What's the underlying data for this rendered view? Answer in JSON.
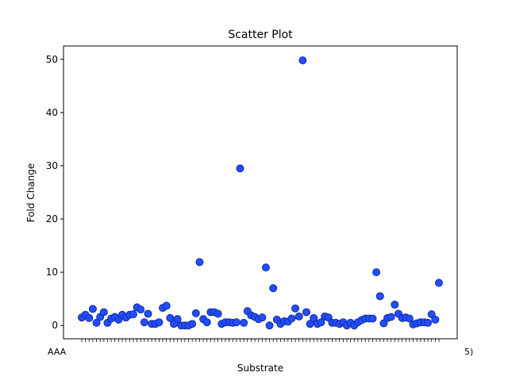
{
  "chart_data": {
    "type": "scatter",
    "title": "Scatter Plot",
    "xlabel": "Substrate",
    "ylabel": "Fold Change",
    "ylim": [
      -2.5,
      52.5
    ],
    "yticks": [
      0,
      10,
      20,
      30,
      40,
      50
    ],
    "grid": false,
    "legend": "none",
    "colors": {
      "marker_fill": "#1f4fff",
      "marker_edge": "#1a2a9a",
      "axis": "#000000"
    },
    "x_tick_labels_note": "",
    "x_tick_label_left_fragment": "AAA",
    "x_tick_label_right_fragment": "5)",
    "values": [
      1.5,
      2.0,
      1.4,
      3.1,
      0.5,
      1.6,
      2.5,
      0.5,
      1.3,
      1.6,
      1.1,
      2.0,
      1.5,
      2.0,
      2.1,
      3.4,
      3.0,
      0.6,
      2.2,
      0.3,
      0.3,
      0.6,
      3.3,
      3.7,
      1.4,
      0.3,
      1.2,
      0.0,
      0.0,
      0.0,
      0.3,
      2.3,
      11.9,
      1.2,
      0.6,
      2.5,
      2.5,
      2.2,
      0.3,
      0.6,
      0.6,
      0.5,
      0.6,
      29.5,
      0.5,
      2.7,
      1.9,
      1.6,
      1.2,
      1.5,
      10.9,
      0.0,
      7.0,
      1.1,
      0.3,
      0.8,
      0.7,
      1.3,
      3.2,
      1.7,
      49.8,
      2.5,
      0.3,
      1.4,
      0.3,
      0.6,
      1.7,
      1.5,
      0.5,
      0.5,
      0.3,
      0.6,
      0.0,
      0.5,
      0.0,
      0.6,
      1.0,
      1.3,
      1.3,
      1.3,
      10.0,
      5.5,
      0.4,
      1.4,
      1.6,
      3.9,
      2.2,
      1.4,
      1.5,
      1.3,
      0.2,
      0.4,
      0.6,
      0.6,
      0.5,
      2.1,
      1.1,
      8.0
    ]
  }
}
